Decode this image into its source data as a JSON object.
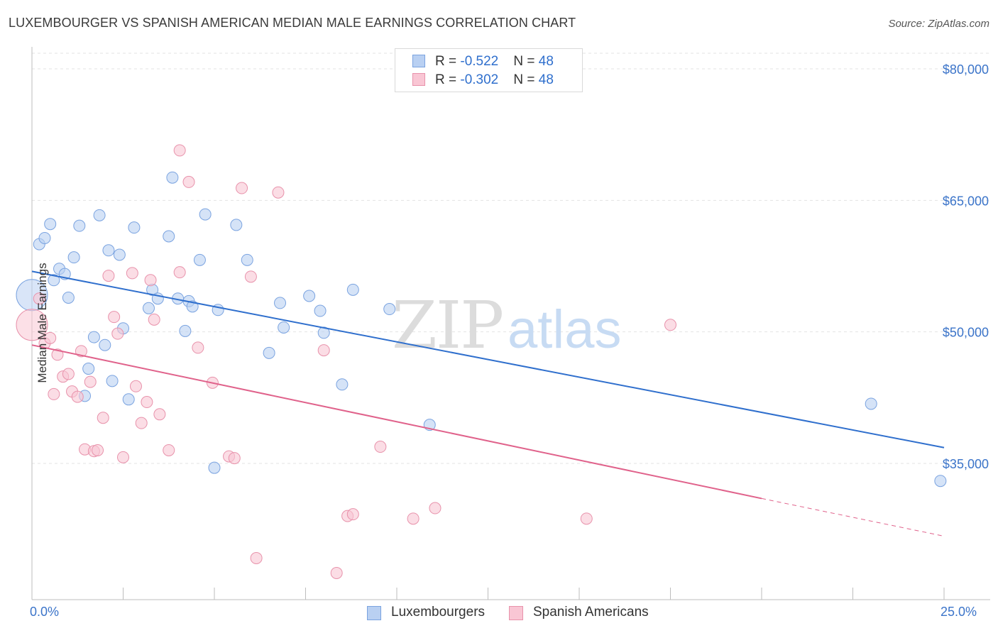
{
  "title": "LUXEMBOURGER VS SPANISH AMERICAN MEDIAN MALE EARNINGS CORRELATION CHART",
  "source": "Source: ZipAtlas.com",
  "watermark": {
    "zip": "ZIP",
    "atlas": "atlas"
  },
  "legend_top": [
    {
      "r_label": "R = ",
      "r_value": "-0.522",
      "n_label": "N = ",
      "n_value": "48",
      "fill": "#b9d0f2",
      "stroke": "#7aa3e0"
    },
    {
      "r_label": "R = ",
      "r_value": "-0.302",
      "n_label": "N = ",
      "n_value": "48",
      "fill": "#f9c6d4",
      "stroke": "#e892ab"
    }
  ],
  "legend_bottom": [
    {
      "label": "Luxembourgers",
      "fill": "#b9d0f2",
      "stroke": "#7aa3e0"
    },
    {
      "label": "Spanish Americans",
      "fill": "#f9c6d4",
      "stroke": "#e892ab"
    }
  ],
  "chart_data": {
    "type": "scatter",
    "title": "LUXEMBOURGER VS SPANISH AMERICAN MEDIAN MALE EARNINGS CORRELATION CHART",
    "xlabel": "",
    "ylabel": "Median Male Earnings",
    "xlim": [
      0,
      25
    ],
    "ylim": [
      20000,
      82000
    ],
    "x_tick_labels": [
      "0.0%",
      "25.0%"
    ],
    "y_ticks": [
      35000,
      50000,
      65000,
      80000
    ],
    "y_tick_labels": [
      "$35,000",
      "$50,000",
      "$65,000",
      "$80,000"
    ],
    "grid": true,
    "legend": "top-center",
    "series": [
      {
        "name": "Luxembourgers",
        "color": "#2f6fcd",
        "marker_fill": "#b9d0f2",
        "marker_stroke": "#7aa3e0",
        "points": [
          [
            0.0,
            54200
          ],
          [
            0.2,
            60000
          ],
          [
            0.35,
            60700
          ],
          [
            0.5,
            62300
          ],
          [
            0.6,
            55900
          ],
          [
            0.75,
            57200
          ],
          [
            0.9,
            56600
          ],
          [
            1.0,
            53900
          ],
          [
            1.15,
            58500
          ],
          [
            1.3,
            62100
          ],
          [
            1.45,
            42700
          ],
          [
            1.55,
            45800
          ],
          [
            1.7,
            49400
          ],
          [
            1.85,
            63300
          ],
          [
            2.0,
            48500
          ],
          [
            2.1,
            59300
          ],
          [
            2.2,
            44400
          ],
          [
            2.4,
            58800
          ],
          [
            2.5,
            50400
          ],
          [
            2.65,
            42300
          ],
          [
            2.8,
            61900
          ],
          [
            3.2,
            52700
          ],
          [
            3.3,
            54800
          ],
          [
            3.45,
            53800
          ],
          [
            3.75,
            60900
          ],
          [
            3.85,
            67600
          ],
          [
            4.0,
            53800
          ],
          [
            4.2,
            50100
          ],
          [
            4.3,
            53500
          ],
          [
            4.4,
            52900
          ],
          [
            4.6,
            58200
          ],
          [
            4.75,
            63400
          ],
          [
            5.0,
            34500
          ],
          [
            5.1,
            52500
          ],
          [
            5.6,
            62200
          ],
          [
            5.9,
            58200
          ],
          [
            6.5,
            47600
          ],
          [
            6.8,
            53300
          ],
          [
            6.9,
            50500
          ],
          [
            7.6,
            54100
          ],
          [
            7.9,
            52400
          ],
          [
            8.0,
            49900
          ],
          [
            8.5,
            44000
          ],
          [
            8.8,
            54800
          ],
          [
            9.8,
            52600
          ],
          [
            10.9,
            39400
          ],
          [
            23.0,
            41800
          ],
          [
            24.9,
            33000
          ]
        ],
        "trend": {
          "x": [
            0,
            25
          ],
          "y": [
            56900,
            36800
          ]
        }
      },
      {
        "name": "Spanish Americans",
        "color": "#e0628b",
        "marker_fill": "#f9c6d4",
        "marker_stroke": "#e892ab",
        "points": [
          [
            0.0,
            50800
          ],
          [
            0.2,
            53800
          ],
          [
            0.35,
            48700
          ],
          [
            0.5,
            49300
          ],
          [
            0.6,
            42900
          ],
          [
            0.7,
            47400
          ],
          [
            0.85,
            44900
          ],
          [
            1.0,
            45200
          ],
          [
            1.1,
            43200
          ],
          [
            1.25,
            42600
          ],
          [
            1.35,
            47800
          ],
          [
            1.45,
            36600
          ],
          [
            1.6,
            44300
          ],
          [
            1.7,
            36400
          ],
          [
            1.8,
            36500
          ],
          [
            1.95,
            40200
          ],
          [
            2.1,
            56400
          ],
          [
            2.25,
            51700
          ],
          [
            2.35,
            49800
          ],
          [
            2.5,
            35700
          ],
          [
            2.75,
            56700
          ],
          [
            2.85,
            43800
          ],
          [
            3.0,
            39600
          ],
          [
            3.15,
            42000
          ],
          [
            3.25,
            55900
          ],
          [
            3.35,
            51400
          ],
          [
            3.5,
            40600
          ],
          [
            3.75,
            36500
          ],
          [
            4.05,
            56800
          ],
          [
            4.05,
            70700
          ],
          [
            4.3,
            67100
          ],
          [
            4.55,
            48200
          ],
          [
            4.95,
            44200
          ],
          [
            5.4,
            35800
          ],
          [
            5.55,
            35600
          ],
          [
            5.75,
            66400
          ],
          [
            6.0,
            56300
          ],
          [
            6.15,
            24200
          ],
          [
            6.75,
            65900
          ],
          [
            8.0,
            47900
          ],
          [
            8.35,
            22500
          ],
          [
            8.65,
            29000
          ],
          [
            8.8,
            29200
          ],
          [
            9.55,
            36900
          ],
          [
            10.45,
            28700
          ],
          [
            11.05,
            29900
          ],
          [
            15.2,
            28700
          ],
          [
            17.5,
            50800
          ]
        ],
        "trend": {
          "x": [
            0,
            20
          ],
          "y": [
            48500,
            31000
          ]
        },
        "trend_extension": {
          "x": [
            20,
            25
          ],
          "y": [
            31000,
            26700
          ]
        }
      }
    ]
  }
}
